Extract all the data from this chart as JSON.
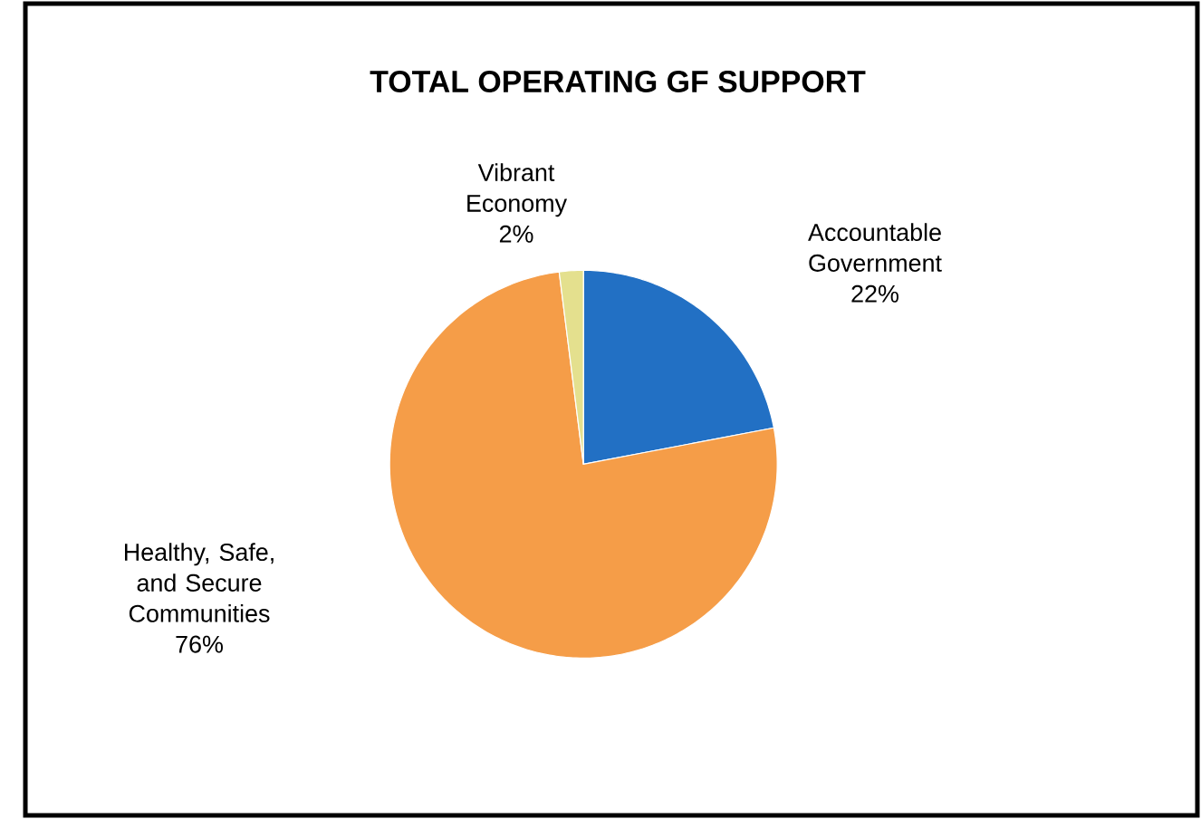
{
  "chart_data": {
    "type": "pie",
    "title": "TOTAL OPERATING GF SUPPORT",
    "categories": [
      "Accountable Government",
      "Healthy, Safe, and Secure Communities",
      "Vibrant Economy"
    ],
    "values": [
      22,
      76,
      2
    ],
    "value_labels": [
      "22%",
      "76%",
      "2%"
    ],
    "colors": [
      "#2270c4",
      "#f59d48",
      "#e4e08e"
    ]
  }
}
